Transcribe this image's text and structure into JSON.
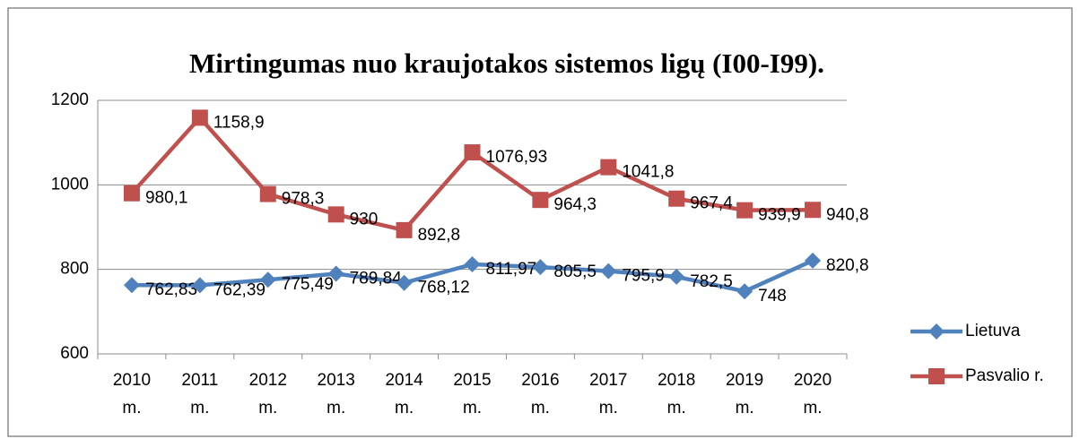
{
  "chart_data": {
    "type": "line",
    "title": "Mirtingumas nuo kraujotakos sistemos ligų (I00-I99).",
    "categories": [
      "2010 m.",
      "2011 m.",
      "2012 m.",
      "2013 m.",
      "2014 m.",
      "2015 m.",
      "2016 m.",
      "2017 m.",
      "2018 m.",
      "2019 m.",
      "2020 m."
    ],
    "series": [
      {
        "name": "Lietuva",
        "color": "#4f81bd",
        "marker": "diamond",
        "values": [
          762.83,
          762.39,
          775.49,
          789.84,
          768.12,
          811.97,
          805.5,
          795.9,
          782.5,
          748,
          820.8
        ],
        "value_labels": [
          "762,83",
          "762,39",
          "775,49",
          "789,84",
          "768,12",
          "811,97",
          "805,5",
          "795,9",
          "782,5",
          "748",
          "820,8"
        ]
      },
      {
        "name": "Pasvalio r.",
        "color": "#c0504d",
        "marker": "square",
        "values": [
          980.1,
          1158.9,
          978.3,
          930,
          892.8,
          1076.93,
          964.3,
          1041.8,
          967.4,
          939.9,
          940.8
        ],
        "value_labels": [
          "980,1",
          "1158,9",
          "978,3",
          "930",
          "892,8",
          "1076,93",
          "964,3",
          "1041,8",
          "967,4",
          "939,9",
          "940,8"
        ]
      }
    ],
    "ylim": [
      600,
      1200
    ],
    "yticks": [
      600,
      800,
      1000,
      1200
    ],
    "grid": true,
    "legend": "right"
  }
}
